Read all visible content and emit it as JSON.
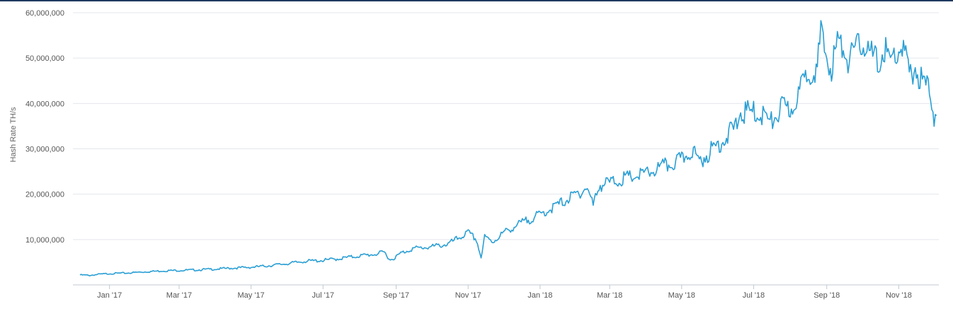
{
  "chart_data": {
    "type": "line",
    "ylabel": "Hash Rate TH/s",
    "ylim": [
      0,
      60000000
    ],
    "yticks": [
      {
        "value": 10000000,
        "label": "10,000,000"
      },
      {
        "value": 20000000,
        "label": "20,000,000"
      },
      {
        "value": 30000000,
        "label": "30,000,000"
      },
      {
        "value": 40000000,
        "label": "40,000,000"
      },
      {
        "value": 50000000,
        "label": "50,000,000"
      },
      {
        "value": 60000000,
        "label": "60,000,000"
      }
    ],
    "xrange": [
      "2016-12-01",
      "2018-12-05"
    ],
    "xticks": [
      {
        "date": "2017-01-01",
        "label": "Jan '17"
      },
      {
        "date": "2017-03-01",
        "label": "Mar '17"
      },
      {
        "date": "2017-05-01",
        "label": "May '17"
      },
      {
        "date": "2017-07-01",
        "label": "Jul '17"
      },
      {
        "date": "2017-09-01",
        "label": "Sep '17"
      },
      {
        "date": "2017-11-01",
        "label": "Nov '17"
      },
      {
        "date": "2018-01-01",
        "label": "Jan '18"
      },
      {
        "date": "2018-03-01",
        "label": "Mar '18"
      },
      {
        "date": "2018-05-01",
        "label": "May '18"
      },
      {
        "date": "2018-07-01",
        "label": "Jul '18"
      },
      {
        "date": "2018-09-01",
        "label": "Sep '18"
      },
      {
        "date": "2018-11-01",
        "label": "Nov '18"
      }
    ],
    "grid": true,
    "line_color": "#2b9fd4",
    "series": [
      {
        "x": [
          "2016-12-07",
          "2016-12-15",
          "2016-12-22",
          "2017-01-01",
          "2017-01-15",
          "2017-02-01",
          "2017-02-15",
          "2017-03-01",
          "2017-03-15",
          "2017-04-01",
          "2017-04-15",
          "2017-05-01",
          "2017-05-15",
          "2017-06-01",
          "2017-06-15",
          "2017-07-01",
          "2017-07-15",
          "2017-08-01",
          "2017-08-15",
          "2017-08-22",
          "2017-08-27",
          "2017-09-01",
          "2017-09-05",
          "2017-09-15",
          "2017-10-01",
          "2017-10-15",
          "2017-10-25",
          "2017-11-01",
          "2017-11-08",
          "2017-11-12",
          "2017-11-15",
          "2017-11-22",
          "2017-12-01",
          "2017-12-15",
          "2018-01-01",
          "2018-01-15",
          "2018-02-01",
          "2018-02-10",
          "2018-02-15",
          "2018-02-20",
          "2018-03-01",
          "2018-03-15",
          "2018-04-01",
          "2018-04-15",
          "2018-05-01",
          "2018-05-10",
          "2018-05-15",
          "2018-06-01",
          "2018-06-15",
          "2018-06-20",
          "2018-07-01",
          "2018-07-10",
          "2018-07-15",
          "2018-07-25",
          "2018-08-01",
          "2018-08-10",
          "2018-08-15",
          "2018-08-20",
          "2018-08-24",
          "2018-08-27",
          "2018-09-01",
          "2018-09-05",
          "2018-09-10",
          "2018-09-15",
          "2018-09-20",
          "2018-09-25",
          "2018-10-01",
          "2018-10-05",
          "2018-10-10",
          "2018-10-15",
          "2018-10-20",
          "2018-10-25",
          "2018-11-01",
          "2018-11-05",
          "2018-11-10",
          "2018-11-15",
          "2018-11-20",
          "2018-11-24",
          "2018-11-28",
          "2018-12-01",
          "2018-12-03"
        ],
        "y": [
          2200000,
          2100000,
          2300000,
          2500000,
          2600000,
          2900000,
          3100000,
          3200000,
          3300000,
          3500000,
          3700000,
          3900000,
          4200000,
          4700000,
          5200000,
          5400000,
          5800000,
          6400000,
          6800000,
          7200000,
          5500000,
          6200000,
          7000000,
          8000000,
          8400000,
          9000000,
          10500000,
          11500000,
          10000000,
          6000000,
          10500000,
          9500000,
          11500000,
          13500000,
          15500000,
          17500000,
          20000000,
          21500000,
          17500000,
          22000000,
          22500000,
          23500000,
          24500000,
          26000000,
          27500000,
          30000000,
          27000000,
          31000000,
          34500000,
          38000000,
          38000000,
          37500000,
          35500000,
          39000000,
          38500000,
          43000000,
          46500000,
          48000000,
          47500000,
          55000000,
          50000000,
          48000000,
          53000000,
          52500000,
          49500000,
          51000000,
          54000000,
          52000000,
          50000000,
          49000000,
          52000000,
          49000000,
          52000000,
          52000000,
          46000000,
          48000000,
          45000000,
          44000000,
          42000000,
          37000000,
          40000000
        ],
        "noise": [
          1,
          -1,
          0,
          1,
          -1,
          1,
          -1,
          0,
          1,
          -1,
          1,
          0
        ]
      }
    ]
  }
}
